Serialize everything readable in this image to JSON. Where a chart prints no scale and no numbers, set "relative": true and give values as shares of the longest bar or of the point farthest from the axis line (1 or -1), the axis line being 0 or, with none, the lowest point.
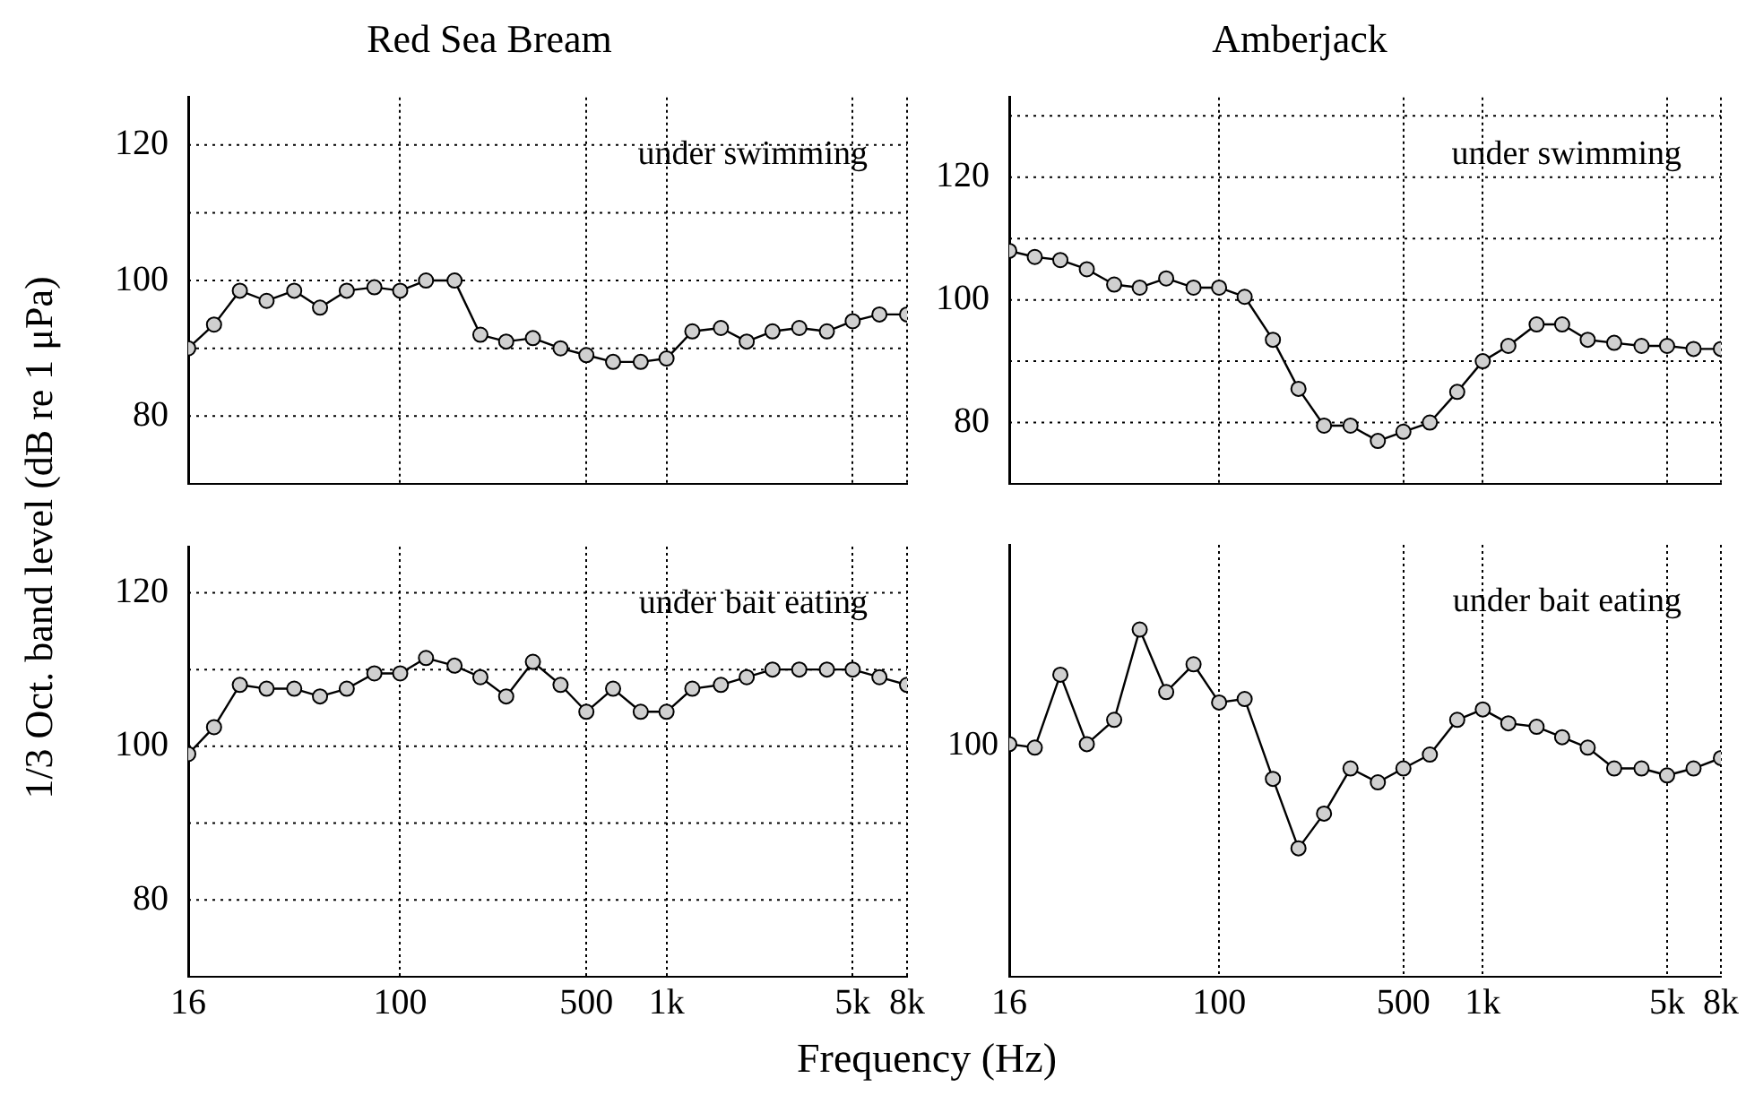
{
  "chart_data": [
    {
      "type": "line",
      "title": "Red Sea Bream",
      "ylabel": "1/3 Oct. band level (dB re 1 μPa)",
      "annotations": [
        "under swimming"
      ],
      "log": "x",
      "grid": true,
      "marker": "circle",
      "tick_labels": "y",
      "x": [
        16,
        20,
        25,
        31.5,
        40,
        50,
        63,
        80,
        100,
        125,
        160,
        200,
        250,
        315,
        400,
        500,
        630,
        800,
        1000,
        1250,
        1600,
        2000,
        2500,
        3150,
        4000,
        5000,
        6300,
        8000
      ],
      "values": [
        90,
        93.5,
        98.5,
        97,
        98.5,
        96,
        98.5,
        99,
        98.5,
        100,
        100,
        92,
        91,
        91.5,
        90,
        89,
        88,
        88,
        88.5,
        92.5,
        93,
        91,
        92.5,
        93,
        92.5,
        94,
        95,
        95
      ],
      "color": "#000000",
      "xlim": [
        16,
        8000
      ],
      "xticks": [
        {
          "value": 16,
          "label": null
        },
        {
          "value": 100,
          "label": null
        },
        {
          "value": 500,
          "label": null
        },
        {
          "value": 1000,
          "label": null
        },
        {
          "value": 5000,
          "label": null
        },
        {
          "value": 8000,
          "label": null
        }
      ],
      "ylim": [
        70,
        127
      ],
      "yticks": [
        {
          "value": 70,
          "label": null
        },
        80,
        {
          "value": 90,
          "label": null
        },
        100,
        {
          "value": 110,
          "label": null
        },
        120
      ]
    },
    {
      "type": "line",
      "title": "Amberjack",
      "annotations": [
        "under swimming"
      ],
      "log": "x",
      "grid": true,
      "marker": "circle",
      "tick_labels": "y",
      "x": [
        16,
        20,
        25,
        31.5,
        40,
        50,
        63,
        80,
        100,
        125,
        160,
        200,
        250,
        315,
        400,
        500,
        630,
        800,
        1000,
        1250,
        1600,
        2000,
        2500,
        3150,
        4000,
        5000,
        6300,
        8000
      ],
      "values": [
        108,
        107,
        106.5,
        105,
        102.5,
        102,
        103.5,
        102,
        102,
        100.5,
        93.5,
        85.5,
        79.5,
        79.5,
        77,
        78.5,
        80,
        85,
        90,
        92.5,
        96,
        96,
        93.5,
        93,
        92.5,
        92.5,
        92,
        92
      ],
      "color": "#000000",
      "xlim": [
        16,
        8000
      ],
      "xticks": [
        {
          "value": 16,
          "label": null
        },
        {
          "value": 100,
          "label": null
        },
        {
          "value": 500,
          "label": null
        },
        {
          "value": 1000,
          "label": null
        },
        {
          "value": 5000,
          "label": null
        },
        {
          "value": 8000,
          "label": null
        }
      ],
      "ylim": [
        70,
        133
      ],
      "yticks": [
        {
          "value": 70,
          "label": null
        },
        80,
        {
          "value": 90,
          "label": null
        },
        100,
        {
          "value": 110,
          "label": null
        },
        120,
        {
          "value": 130,
          "label": null
        }
      ]
    },
    {
      "type": "line",
      "xlabel": "Frequency (Hz)",
      "annotations": [
        "under bait eating"
      ],
      "log": "x",
      "grid": true,
      "marker": "circle",
      "x": [
        16,
        20,
        25,
        31.5,
        40,
        50,
        63,
        80,
        100,
        125,
        160,
        200,
        250,
        315,
        400,
        500,
        630,
        800,
        1000,
        1250,
        1600,
        2000,
        2500,
        3150,
        4000,
        5000,
        6300,
        8000
      ],
      "values": [
        99,
        102.5,
        108,
        107.5,
        107.5,
        106.5,
        107.5,
        109.5,
        109.5,
        111.5,
        110.5,
        109,
        106.5,
        111,
        108,
        104.5,
        107.5,
        104.5,
        104.5,
        107.5,
        108,
        109,
        110,
        110,
        110,
        110,
        109,
        108
      ],
      "color": "#000000",
      "xlim": [
        16,
        8000
      ],
      "xticks": [
        16,
        100,
        500,
        {
          "value": 1000,
          "label": "1k"
        },
        {
          "value": 5000,
          "label": "5k"
        },
        {
          "value": 8000,
          "label": "8k"
        }
      ],
      "ylim": [
        70,
        126
      ],
      "yticks": [
        {
          "value": 70,
          "label": null
        },
        80,
        {
          "value": 90,
          "label": null
        },
        100,
        {
          "value": 110,
          "label": null
        },
        120
      ]
    },
    {
      "type": "line",
      "annotations": [
        "under bait eating",
        "100"
      ],
      "relative": true,
      "log": "x",
      "grid": "x",
      "marker": "circle",
      "x": [
        16,
        20,
        25,
        31.5,
        40,
        50,
        63,
        80,
        100,
        125,
        160,
        200,
        250,
        315,
        400,
        500,
        630,
        800,
        1000,
        1250,
        1600,
        2000,
        2500,
        3150,
        4000,
        5000,
        6300,
        8000
      ],
      "values": [
        0.67,
        0.66,
        0.87,
        0.67,
        0.74,
        1,
        0.82,
        0.9,
        0.79,
        0.8,
        0.57,
        0.37,
        0.47,
        0.6,
        0.56,
        0.6,
        0.64,
        0.74,
        0.77,
        0.73,
        0.72,
        0.69,
        0.66,
        0.6,
        0.6,
        0.58,
        0.6,
        0.63
      ],
      "color": "#000000",
      "xlim": [
        16,
        8000
      ],
      "xticks": [
        16,
        100,
        500,
        {
          "value": 1000,
          "label": "1k"
        },
        {
          "value": 5000,
          "label": "5k"
        },
        {
          "value": 8000,
          "label": "8k"
        }
      ]
    }
  ]
}
